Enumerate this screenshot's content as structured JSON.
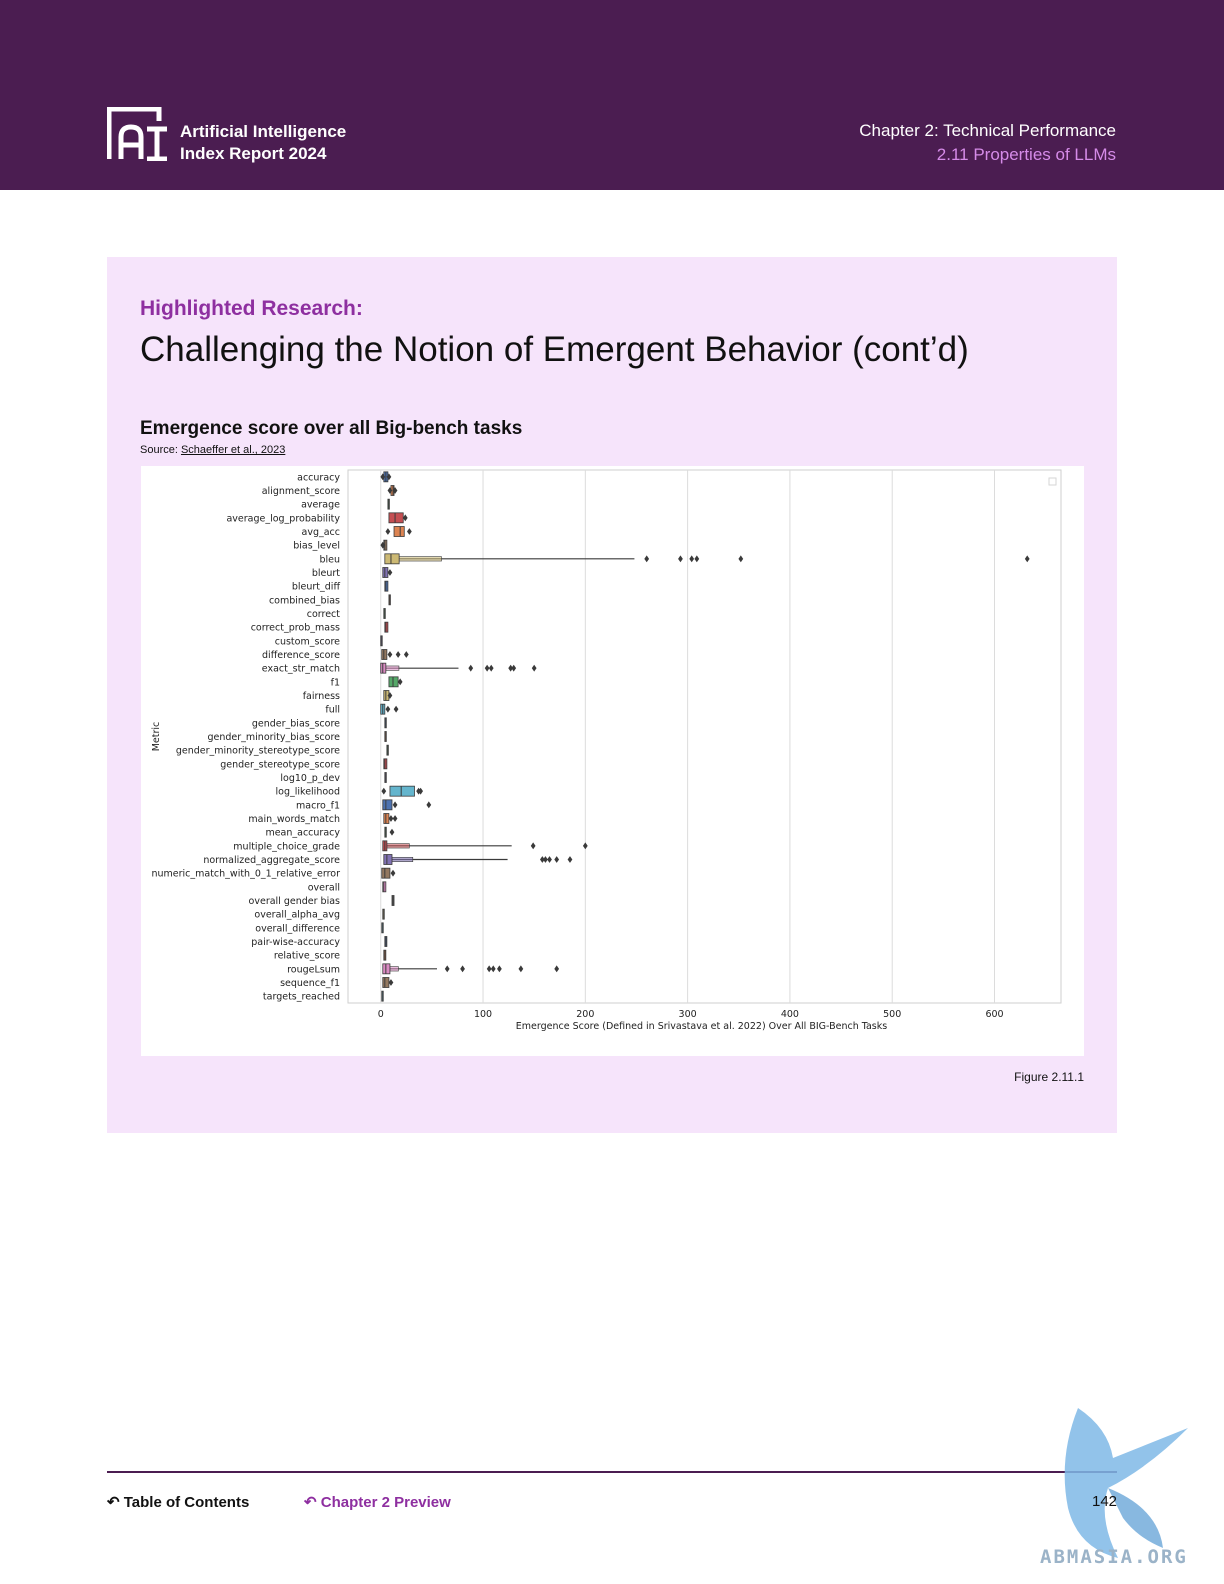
{
  "header": {
    "logo_text": "AI",
    "brand_line1": "Artificial Intelligence",
    "brand_line2": "Index Report 2024",
    "chapter": "Chapter 2: Technical Performance",
    "section": "2.11 Properties of LLMs"
  },
  "panel": {
    "kicker": "Highlighted Research:",
    "title": "Challenging the Notion of Emergent Behavior (cont’d)",
    "chart_title": "Emergence score over all Big-bench tasks",
    "source_prefix": "Source: ",
    "source_link": "Schaeffer et al., 2023",
    "figure_label": "Figure 2.11.1"
  },
  "chart_data": {
    "type": "boxen",
    "xlabel": "Emergence Score (Defined in Srivastava et al. 2022) Over All BIG-Bench Tasks",
    "ylabel": "Metric",
    "xlim": [
      -32,
      665
    ],
    "xticks": [
      0,
      100,
      200,
      300,
      400,
      500,
      600
    ],
    "grid": true,
    "orientation": "horizontal",
    "metrics": [
      {
        "name": "accuracy",
        "color": "#4c72b0",
        "box": [
          3,
          7
        ],
        "center": 5,
        "outliers": [
          2,
          8
        ]
      },
      {
        "name": "alignment_score",
        "color": "#dd8452",
        "box": [
          10,
          13
        ],
        "center": 12,
        "outliers": [
          9,
          14
        ]
      },
      {
        "name": "average",
        "color": "#55a868",
        "box": [
          7,
          8
        ],
        "center": 7.5,
        "outliers": []
      },
      {
        "name": "average_log_probability",
        "color": "#c44e52",
        "box": [
          8,
          22
        ],
        "center": 14,
        "outliers": [
          24
        ]
      },
      {
        "name": "avg_acc",
        "color": "#dd8452",
        "box": [
          13,
          23
        ],
        "center": 19,
        "outliers": [
          7,
          28
        ]
      },
      {
        "name": "bias_level",
        "color": "#937860",
        "box": [
          3,
          6
        ],
        "center": 4,
        "outliers": [
          2
        ]
      },
      {
        "name": "bleu",
        "color": "#ccb974",
        "box": [
          4,
          18
        ],
        "center": 10,
        "whisker": [
          0,
          248
        ],
        "outliers": [
          260,
          293,
          304,
          309,
          352,
          632
        ]
      },
      {
        "name": "bleurt",
        "color": "#8172b3",
        "box": [
          2,
          7
        ],
        "center": 4,
        "outliers": [
          9
        ]
      },
      {
        "name": "bleurt_diff",
        "color": "#4c72b0",
        "box": [
          4,
          7
        ],
        "center": 5,
        "outliers": []
      },
      {
        "name": "combined_bias",
        "color": "#dd8452",
        "box": [
          8,
          9
        ],
        "center": 8.5,
        "outliers": []
      },
      {
        "name": "correct",
        "color": "#55a868",
        "box": [
          3,
          4
        ],
        "center": 3.5,
        "outliers": []
      },
      {
        "name": "correct_prob_mass",
        "color": "#c44e52",
        "box": [
          4,
          7
        ],
        "center": 5,
        "outliers": []
      },
      {
        "name": "custom_score",
        "color": "#8172b3",
        "box": [
          0,
          1
        ],
        "center": 0.5,
        "outliers": []
      },
      {
        "name": "difference_score",
        "color": "#937860",
        "box": [
          1,
          6
        ],
        "center": 3,
        "outliers": [
          9,
          17,
          25
        ]
      },
      {
        "name": "exact_str_match",
        "color": "#da8bc3",
        "box": [
          0,
          5
        ],
        "center": 2,
        "whisker": [
          0,
          76
        ],
        "outliers": [
          88,
          104,
          108,
          127,
          130,
          150
        ]
      },
      {
        "name": "f1",
        "color": "#55a868",
        "box": [
          8,
          17
        ],
        "center": 12,
        "outliers": [
          19
        ]
      },
      {
        "name": "fairness",
        "color": "#ccb974",
        "box": [
          3,
          8
        ],
        "center": 5,
        "outliers": [
          9
        ]
      },
      {
        "name": "full",
        "color": "#64b5cd",
        "box": [
          0,
          4
        ],
        "center": 2,
        "outliers": [
          7,
          15
        ]
      },
      {
        "name": "gender_bias_score",
        "color": "#4c72b0",
        "box": [
          4,
          5
        ],
        "center": 4.5,
        "outliers": []
      },
      {
        "name": "gender_minority_bias_score",
        "color": "#dd8452",
        "box": [
          4,
          5
        ],
        "center": 4.5,
        "outliers": []
      },
      {
        "name": "gender_minority_stereotype_score",
        "color": "#55a868",
        "box": [
          6,
          7
        ],
        "center": 6.5,
        "outliers": []
      },
      {
        "name": "gender_stereotype_score",
        "color": "#c44e52",
        "box": [
          3,
          6
        ],
        "center": 4,
        "outliers": []
      },
      {
        "name": "log10_p_dev",
        "color": "#8172b3",
        "box": [
          4,
          5
        ],
        "center": 4.5,
        "outliers": []
      },
      {
        "name": "log_likelihood",
        "color": "#64b5cd",
        "box": [
          9,
          33
        ],
        "center": 20,
        "outliers": [
          3,
          37,
          39
        ]
      },
      {
        "name": "macro_f1",
        "color": "#4c72b0",
        "box": [
          2,
          11
        ],
        "center": 5,
        "outliers": [
          14,
          47
        ]
      },
      {
        "name": "main_words_match",
        "color": "#dd8452",
        "box": [
          3,
          8
        ],
        "center": 5,
        "outliers": [
          10,
          14
        ]
      },
      {
        "name": "mean_accuracy",
        "color": "#55a868",
        "box": [
          4,
          5
        ],
        "center": 4.5,
        "outliers": [
          11
        ]
      },
      {
        "name": "multiple_choice_grade",
        "color": "#c44e52",
        "box": [
          2,
          6
        ],
        "center": 4,
        "whisker": [
          0,
          128
        ],
        "outliers": [
          149,
          200
        ]
      },
      {
        "name": "normalized_aggregate_score",
        "color": "#8172b3",
        "box": [
          3,
          11
        ],
        "center": 6,
        "whisker": [
          0,
          124
        ],
        "outliers": [
          158,
          161,
          165,
          172,
          185
        ]
      },
      {
        "name": "numeric_match_with_0_1_relative_error",
        "color": "#937860",
        "box": [
          1,
          9
        ],
        "center": 4,
        "outliers": [
          12
        ]
      },
      {
        "name": "overall",
        "color": "#da8bc3",
        "box": [
          2,
          5
        ],
        "center": 3,
        "outliers": []
      },
      {
        "name": "overall gender bias",
        "color": "#8c8c8c",
        "box": [
          11,
          13
        ],
        "center": 12,
        "outliers": []
      },
      {
        "name": "overall_alpha_avg",
        "color": "#ccb974",
        "box": [
          2,
          3
        ],
        "center": 2.5,
        "outliers": []
      },
      {
        "name": "overall_difference",
        "color": "#64b5cd",
        "box": [
          1,
          2
        ],
        "center": 1.5,
        "outliers": []
      },
      {
        "name": "pair-wise-accuracy",
        "color": "#4c72b0",
        "box": [
          4,
          6
        ],
        "center": 5,
        "outliers": []
      },
      {
        "name": "relative_score",
        "color": "#dd8452",
        "box": [
          3,
          5
        ],
        "center": 4,
        "outliers": []
      },
      {
        "name": "rougeLsum",
        "color": "#da8bc3",
        "box": [
          2,
          9
        ],
        "center": 5,
        "whisker": [
          0,
          55
        ],
        "outliers": [
          65,
          80,
          106,
          110,
          116,
          137,
          172
        ]
      },
      {
        "name": "sequence_f1",
        "color": "#937860",
        "box": [
          2,
          8
        ],
        "center": 4,
        "outliers": [
          10
        ]
      },
      {
        "name": "targets_reached",
        "color": "#64b5cd",
        "box": [
          1,
          2
        ],
        "center": 1.5,
        "outliers": []
      }
    ]
  },
  "footer": {
    "toc": "Table of Contents",
    "chapter_preview": "Chapter 2 Preview",
    "page": "142",
    "watermark": "ABMASIA.ORG"
  }
}
